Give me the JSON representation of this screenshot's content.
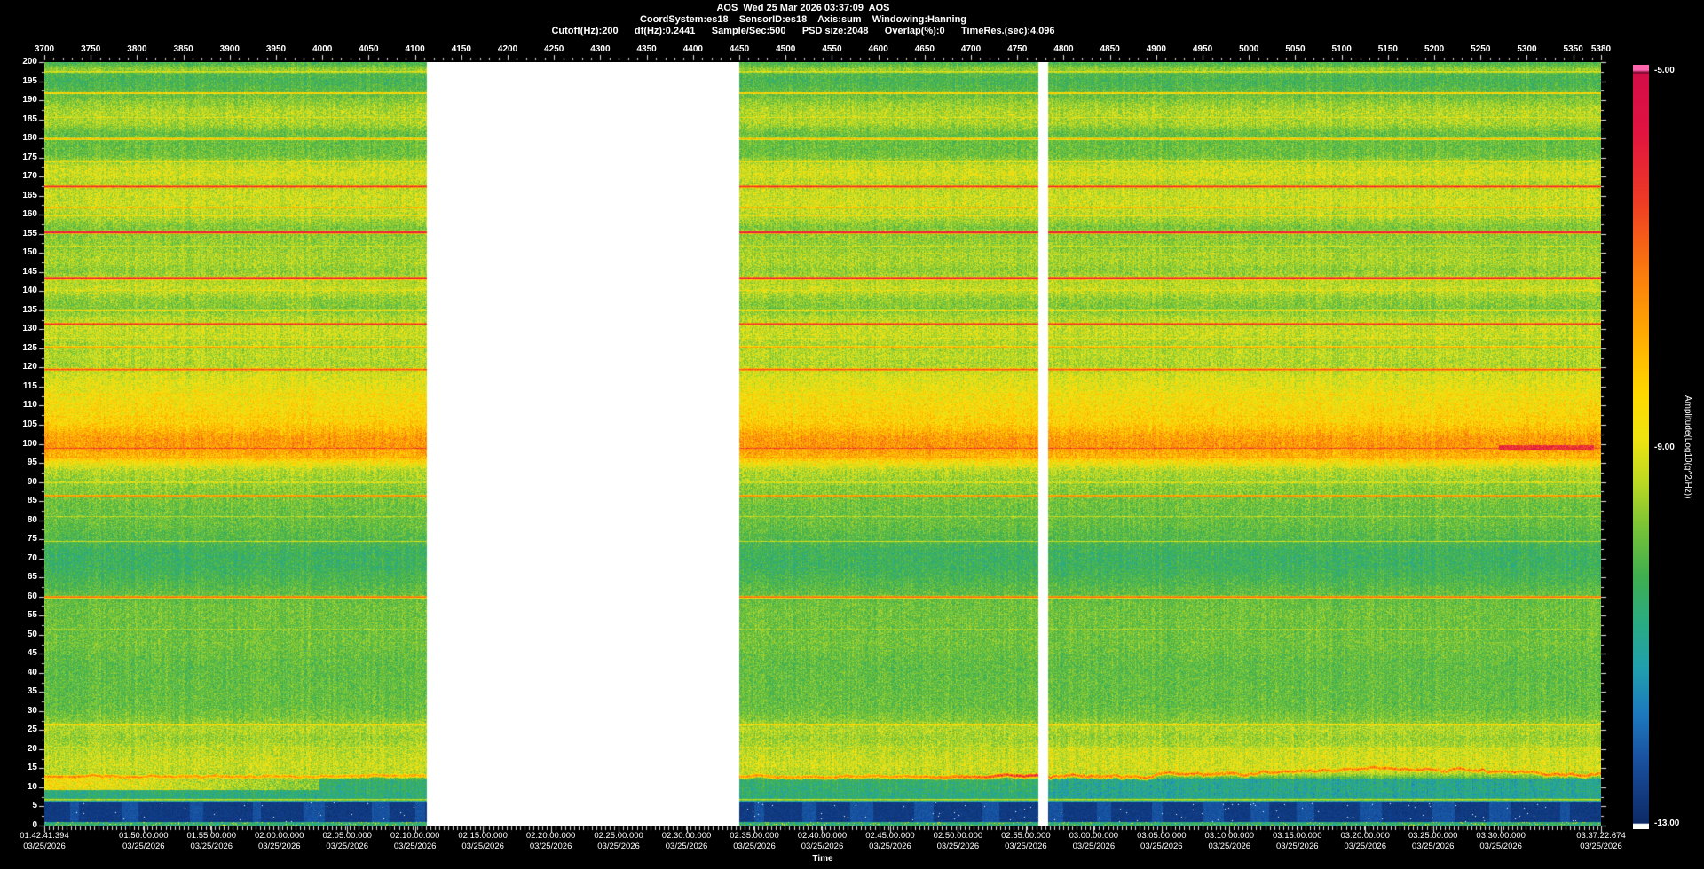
{
  "header": {
    "title_line": "AOS  Wed 25 Mar 2026 03:37:09  AOS",
    "params_line1": "CoordSystem:es18    SensorID:es18    Axis:sum    Windowing:Hanning",
    "params_line2": "Cutoff(Hz):200      df(Hz):0.2441      Sample/Sec:500      PSD size:2048      Overlap(%):0      TimeRes.(sec):4.096"
  },
  "chart_data": {
    "type": "heatmap",
    "subtype": "spectrogram",
    "title": "AOS  Wed 25 Mar 2026 03:37:09  AOS",
    "top_axis": {
      "labels": [
        3700,
        3750,
        3800,
        3850,
        3900,
        3950,
        4000,
        4050,
        4100,
        4150,
        4200,
        4250,
        4300,
        4350,
        4400,
        4450,
        4500,
        4550,
        4600,
        4650,
        4700,
        4750,
        4800,
        4850,
        4900,
        4950,
        5000,
        5050,
        5100,
        5150,
        5200,
        5250,
        5300,
        5350,
        5380
      ],
      "start": 3700,
      "end": 5380,
      "major_step": 50,
      "minor_step": 10
    },
    "freq_axis": {
      "labels": [
        200,
        195,
        190,
        185,
        180,
        175,
        170,
        165,
        160,
        155,
        150,
        145,
        140,
        135,
        130,
        125,
        120,
        115,
        110,
        105,
        100,
        95,
        90,
        85,
        80,
        75,
        70,
        65,
        60,
        55,
        50,
        45,
        40,
        35,
        30,
        25,
        20,
        15,
        10,
        5,
        0
      ],
      "min": 0,
      "max": 200,
      "major_step": 5
    },
    "time_axis": {
      "label": "Time",
      "tick_labels": [
        [
          "01:42:41.394",
          "03/25/2026"
        ],
        [
          "01:50:00.000",
          "03/25/2026"
        ],
        [
          "01:55:00.000",
          "03/25/2026"
        ],
        [
          "02:00:00.000",
          "03/25/2026"
        ],
        [
          "02:05:00.000",
          "03/25/2026"
        ],
        [
          "02:10:00.000",
          "03/25/2026"
        ],
        [
          "02:15:00.000",
          "03/25/2026"
        ],
        [
          "02:20:00.000",
          "03/25/2026"
        ],
        [
          "02:25:00.000",
          "03/25/2026"
        ],
        [
          "02:30:00.000",
          "03/25/2026"
        ],
        [
          "02:35:00.000",
          "03/25/2026"
        ],
        [
          "02:40:00.000",
          "03/25/2026"
        ],
        [
          "02:45:00.000",
          "03/25/2026"
        ],
        [
          "02:50:00.000",
          "03/25/2026"
        ],
        [
          "02:55:00.000",
          "03/25/2026"
        ],
        [
          "03:00:00.000",
          "03/25/2026"
        ],
        [
          "03:05:00.000",
          "03/25/2026"
        ],
        [
          "03:10:00.000",
          "03/25/2026"
        ],
        [
          "03:15:00.000",
          "03/25/2026"
        ],
        [
          "03:20:00.000",
          "03/25/2026"
        ],
        [
          "03:25:00.000",
          "03/25/2026"
        ],
        [
          "03:30:00.000",
          "03/25/2026"
        ],
        [
          "03:37:22.674",
          "03/25/2026"
        ]
      ],
      "start": "01:42:41.394",
      "end": "03:37:22.674"
    },
    "colorbar": {
      "label": "Amplitude(Log10(g^2/Hz))",
      "max_label": "-5.00",
      "mid_label": "-9.00",
      "min_label": "-13.00",
      "max": -5,
      "mid": -9,
      "min": -13,
      "gradient": [
        [
          0,
          "#ff64ae"
        ],
        [
          0.007,
          "#ff64ae"
        ],
        [
          0.01,
          "#7a0a2e"
        ],
        [
          0.013,
          "#d40d48"
        ],
        [
          0.09,
          "#e11440"
        ],
        [
          0.18,
          "#ee3c24"
        ],
        [
          0.27,
          "#fa7a0e"
        ],
        [
          0.35,
          "#ffa802"
        ],
        [
          0.43,
          "#ffd800"
        ],
        [
          0.49,
          "#eee310"
        ],
        [
          0.545,
          "#bcd922"
        ],
        [
          0.61,
          "#74c138"
        ],
        [
          0.67,
          "#3fae50"
        ],
        [
          0.73,
          "#2aab82"
        ],
        [
          0.79,
          "#219fae"
        ],
        [
          0.85,
          "#1d79be"
        ],
        [
          0.905,
          "#1a53a2"
        ],
        [
          0.96,
          "#12387c"
        ],
        [
          0.992,
          "#0d2a66"
        ],
        [
          0.9935,
          "#ffffff"
        ],
        [
          1,
          "#ffffff"
        ]
      ]
    },
    "data_gaps_units": [
      [
        4113,
        4450
      ],
      [
        4773,
        4783
      ]
    ],
    "palette_stops": [
      [
        0.0,
        "#0c2a66"
      ],
      [
        0.07,
        "#12418c"
      ],
      [
        0.13,
        "#1a5fae"
      ],
      [
        0.19,
        "#1f86c0"
      ],
      [
        0.24,
        "#22a5ab"
      ],
      [
        0.29,
        "#2aab80"
      ],
      [
        0.34,
        "#3dae55"
      ],
      [
        0.4,
        "#5bbb42"
      ],
      [
        0.46,
        "#8fcc34"
      ],
      [
        0.52,
        "#c8dd24"
      ],
      [
        0.57,
        "#f2e414"
      ],
      [
        0.62,
        "#ffd806"
      ],
      [
        0.68,
        "#ffb200"
      ],
      [
        0.74,
        "#fb8c0a"
      ],
      [
        0.8,
        "#f55f1e"
      ],
      [
        0.86,
        "#e93428"
      ],
      [
        0.91,
        "#e01348"
      ],
      [
        0.96,
        "#ea2a78"
      ],
      [
        1.0,
        "#ff64ae"
      ]
    ],
    "base_profile": [
      [
        0,
        0.34
      ],
      [
        0.9,
        0.22
      ],
      [
        1.4,
        0.105
      ],
      [
        6.0,
        0.105
      ],
      [
        6.5,
        0.22
      ],
      [
        7.6,
        0.3
      ],
      [
        11.8,
        0.31
      ],
      [
        13.8,
        0.5
      ],
      [
        16,
        0.52
      ],
      [
        20,
        0.5
      ],
      [
        23,
        0.47
      ],
      [
        25.5,
        0.5
      ],
      [
        28,
        0.44
      ],
      [
        31,
        0.41
      ],
      [
        42,
        0.4
      ],
      [
        47,
        0.42
      ],
      [
        57,
        0.42
      ],
      [
        61,
        0.4
      ],
      [
        64,
        0.37
      ],
      [
        68,
        0.34
      ],
      [
        72,
        0.34
      ],
      [
        75,
        0.38
      ],
      [
        79,
        0.41
      ],
      [
        84,
        0.42
      ],
      [
        89,
        0.46
      ],
      [
        93,
        0.5
      ],
      [
        95,
        0.58
      ],
      [
        97,
        0.68
      ],
      [
        99.5,
        0.72
      ],
      [
        102,
        0.71
      ],
      [
        104,
        0.66
      ],
      [
        106,
        0.62
      ],
      [
        110,
        0.6
      ],
      [
        114,
        0.57
      ],
      [
        118,
        0.54
      ],
      [
        121,
        0.49
      ],
      [
        123,
        0.51
      ],
      [
        126,
        0.49
      ],
      [
        128.5,
        0.52
      ],
      [
        131,
        0.52
      ],
      [
        133,
        0.5
      ],
      [
        135.5,
        0.44
      ],
      [
        138,
        0.46
      ],
      [
        140.5,
        0.52
      ],
      [
        143,
        0.5
      ],
      [
        145.5,
        0.46
      ],
      [
        148,
        0.49
      ],
      [
        151,
        0.47
      ],
      [
        154,
        0.46
      ],
      [
        157,
        0.44
      ],
      [
        159.5,
        0.5
      ],
      [
        163,
        0.53
      ],
      [
        166,
        0.52
      ],
      [
        168.5,
        0.5
      ],
      [
        170.5,
        0.54
      ],
      [
        173,
        0.52
      ],
      [
        175.5,
        0.42
      ],
      [
        178,
        0.41
      ],
      [
        181.5,
        0.41
      ],
      [
        184,
        0.49
      ],
      [
        187,
        0.5
      ],
      [
        189.5,
        0.46
      ],
      [
        192.5,
        0.39
      ],
      [
        195,
        0.36
      ],
      [
        197,
        0.38
      ],
      [
        198.2,
        0.47
      ],
      [
        199.2,
        0.4
      ],
      [
        200,
        0.36
      ]
    ],
    "spectral_lines": [
      [
        197.6,
        0.56,
        0.5
      ],
      [
        192,
        0.66,
        0.45
      ],
      [
        185.6,
        0.55,
        0.4
      ],
      [
        180,
        0.67,
        0.5
      ],
      [
        174,
        0.58,
        0.4
      ],
      [
        167.5,
        0.88,
        0.55
      ],
      [
        162,
        0.7,
        0.45
      ],
      [
        159.8,
        0.6,
        0.35
      ],
      [
        155.5,
        0.93,
        0.6
      ],
      [
        152,
        0.56,
        0.35
      ],
      [
        149.8,
        0.6,
        0.4
      ],
      [
        143.5,
        0.95,
        0.65
      ],
      [
        140.3,
        0.56,
        0.35
      ],
      [
        135,
        0.6,
        0.4
      ],
      [
        131.5,
        0.87,
        0.55
      ],
      [
        127.8,
        0.56,
        0.35
      ],
      [
        125.5,
        0.71,
        0.45
      ],
      [
        119.6,
        0.82,
        0.6
      ],
      [
        113,
        0.66,
        0.45
      ],
      [
        110,
        0.58,
        0.4
      ],
      [
        107.4,
        0.66,
        0.45
      ],
      [
        99,
        0.84,
        0.5
      ],
      [
        96.5,
        0.72,
        0.6
      ],
      [
        90,
        0.58,
        0.4
      ],
      [
        86.5,
        0.76,
        0.45
      ],
      [
        81,
        0.53,
        0.35
      ],
      [
        74.6,
        0.53,
        0.35
      ],
      [
        60,
        0.8,
        0.5
      ],
      [
        51.5,
        0.5,
        0.35
      ],
      [
        48,
        0.47,
        0.3
      ],
      [
        26.5,
        0.62,
        0.55
      ],
      [
        20.5,
        0.56,
        0.5
      ],
      [
        6.9,
        0.52,
        0.45
      ]
    ],
    "low_band": {
      "top_freq": 6.25,
      "bottom_freq": 0.95,
      "base_value": 0.105,
      "blob_value": 0.05,
      "speckle_prob": 0.0035
    }
  }
}
